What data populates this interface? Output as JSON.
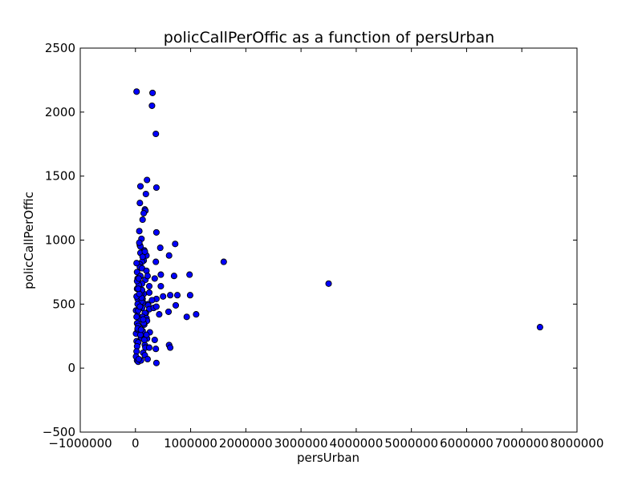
{
  "chart_data": {
    "type": "scatter",
    "title": "policCallPerOffic as a function of persUrban",
    "xlabel": "persUrban",
    "ylabel": "policCallPerOffic",
    "xlim": [
      -1000000,
      8000000
    ],
    "ylim": [
      -500,
      2500
    ],
    "xticks": [
      -1000000,
      0,
      1000000,
      2000000,
      3000000,
      4000000,
      5000000,
      6000000,
      7000000,
      8000000
    ],
    "yticks": [
      -500,
      0,
      500,
      1000,
      1500,
      2000,
      2500
    ],
    "grid": false,
    "marker_color": "#0000ff",
    "marker_edge": "#000000",
    "x": [
      20000,
      310000,
      300000,
      370000,
      210000,
      380000,
      90000,
      190000,
      80000,
      170000,
      180000,
      150000,
      130000,
      380000,
      70000,
      720000,
      110000,
      80000,
      450000,
      160000,
      90000,
      200000,
      610000,
      150000,
      120000,
      80000,
      370000,
      30000,
      1600000,
      80000,
      120000,
      200000,
      90000,
      980000,
      40000,
      180000,
      250000,
      700000,
      460000,
      350000,
      60000,
      120000,
      220000,
      3500000,
      30000,
      80000,
      460000,
      150000,
      250000,
      100000,
      50000,
      40000,
      130000,
      990000,
      630000,
      760000,
      500000,
      380000,
      140000,
      230000,
      300000,
      230000,
      10000,
      120000,
      730000,
      60000,
      250000,
      430000,
      330000,
      380000,
      600000,
      190000,
      170000,
      1100000,
      930000,
      40000,
      130000,
      70000,
      200000,
      210000,
      30000,
      160000,
      50000,
      260000,
      130000,
      7330000,
      10000,
      40000,
      180000,
      100000,
      210000,
      350000,
      20000,
      50000,
      170000,
      610000,
      30000,
      180000,
      250000,
      370000,
      630000,
      20000,
      140000,
      170000,
      220000,
      30000,
      50000,
      100000,
      380000,
      10000,
      60000,
      90000,
      40000,
      150000,
      20000,
      110000,
      80000,
      60000,
      30000,
      20000,
      130000,
      170000,
      90000,
      70000,
      50000,
      40000,
      110000,
      120000,
      60000,
      20000,
      80000,
      140000,
      100000,
      200000,
      160000,
      70000,
      50000
    ],
    "y": [
      2160,
      2150,
      2050,
      1830,
      1470,
      1410,
      1420,
      1360,
      1290,
      1240,
      1230,
      1210,
      1160,
      1060,
      1070,
      970,
      1010,
      960,
      940,
      920,
      900,
      880,
      880,
      840,
      830,
      810,
      830,
      750,
      830,
      790,
      780,
      760,
      720,
      730,
      700,
      690,
      640,
      720,
      730,
      700,
      670,
      660,
      720,
      660,
      620,
      620,
      640,
      580,
      590,
      580,
      560,
      540,
      540,
      570,
      570,
      570,
      560,
      540,
      510,
      500,
      530,
      490,
      450,
      470,
      490,
      460,
      460,
      420,
      470,
      480,
      440,
      430,
      430,
      420,
      400,
      410,
      400,
      380,
      390,
      370,
      350,
      340,
      330,
      280,
      290,
      320,
      270,
      300,
      250,
      240,
      230,
      220,
      210,
      200,
      180,
      180,
      170,
      160,
      160,
      150,
      160,
      130,
      120,
      100,
      70,
      60,
      50,
      60,
      40,
      90,
      70,
      260,
      310,
      350,
      400,
      520,
      600,
      650,
      680,
      820,
      870,
      910,
      950,
      980,
      450,
      500,
      550,
      610,
      700,
      560,
      480,
      380,
      300,
      260,
      220,
      580,
      620
    ]
  }
}
